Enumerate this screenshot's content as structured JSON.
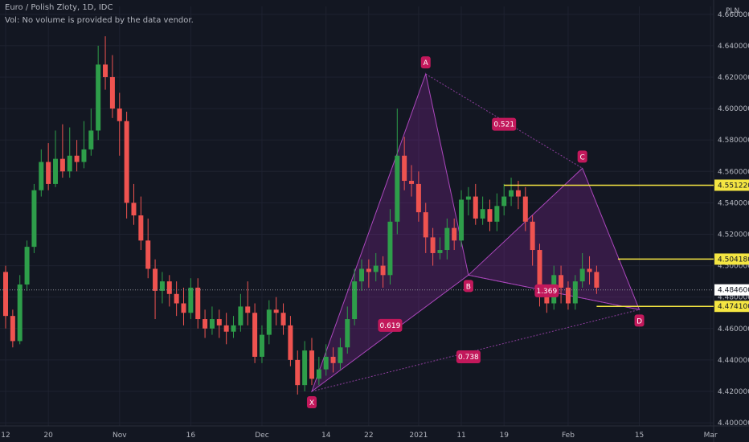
{
  "header": {
    "title": "Euro / Polish Zloty, 1D, IDC",
    "volume_note": "Vol: No volume is provided by the data vendor."
  },
  "colors": {
    "background": "#131722",
    "grid": "#1e2230",
    "axis_text": "#b2b5be",
    "up": "#26a69a",
    "up_green": "#2e9e4a",
    "down": "#ef5350",
    "pattern_fill": "#9c27b0",
    "pattern_line": "#ab47bc",
    "label_bg": "#c2185b",
    "level_line": "#f5e642"
  },
  "chart_data": {
    "type": "candlestick",
    "y_unit": "PLN",
    "ylim": [
      4.398,
      4.665
    ],
    "yticks": [
      "4.400000",
      "4.420000",
      "4.440000",
      "4.460000",
      "4.480000",
      "4.500000",
      "4.520000",
      "4.540000",
      "4.560000",
      "4.580000",
      "4.600000",
      "4.620000",
      "4.640000",
      "4.660000"
    ],
    "x_labels": [
      {
        "label": "12",
        "index": 0
      },
      {
        "label": "20",
        "index": 6
      },
      {
        "label": "Nov",
        "index": 16
      },
      {
        "label": "16",
        "index": 26
      },
      {
        "label": "Dec",
        "index": 36
      },
      {
        "label": "14",
        "index": 45
      },
      {
        "label": "22",
        "index": 51
      },
      {
        "label": "2021",
        "index": 58
      },
      {
        "label": "11",
        "index": 64
      },
      {
        "label": "19",
        "index": 70
      },
      {
        "label": "Feb",
        "index": 79
      },
      {
        "label": "15",
        "index": 89
      },
      {
        "label": "Mar",
        "index": 99
      }
    ],
    "candles": [
      [
        4.496,
        4.468,
        4.5,
        4.46
      ],
      [
        4.468,
        4.452,
        4.472,
        4.448
      ],
      [
        4.452,
        4.488,
        4.494,
        4.45
      ],
      [
        4.488,
        4.512,
        4.516,
        4.484
      ],
      [
        4.512,
        4.548,
        4.552,
        4.508
      ],
      [
        4.548,
        4.566,
        4.574,
        4.544
      ],
      [
        4.566,
        4.552,
        4.578,
        4.548
      ],
      [
        4.552,
        4.568,
        4.586,
        4.55
      ],
      [
        4.568,
        4.56,
        4.59,
        4.556
      ],
      [
        4.56,
        4.57,
        4.588,
        4.556
      ],
      [
        4.57,
        4.566,
        4.58,
        4.56
      ],
      [
        4.566,
        4.574,
        4.592,
        4.562
      ],
      [
        4.574,
        4.586,
        4.6,
        4.57
      ],
      [
        4.586,
        4.628,
        4.64,
        4.58
      ],
      [
        4.628,
        4.62,
        4.646,
        4.612
      ],
      [
        4.62,
        4.6,
        4.634,
        4.594
      ],
      [
        4.6,
        4.592,
        4.61,
        4.57
      ],
      [
        4.592,
        4.54,
        4.598,
        4.53
      ],
      [
        4.54,
        4.532,
        4.552,
        4.526
      ],
      [
        4.532,
        4.516,
        4.544,
        4.51
      ],
      [
        4.516,
        4.498,
        4.53,
        4.492
      ],
      [
        4.498,
        4.484,
        4.504,
        4.466
      ],
      [
        4.484,
        4.49,
        4.496,
        4.476
      ],
      [
        4.49,
        4.482,
        4.494,
        4.474
      ],
      [
        4.482,
        4.476,
        4.49,
        4.468
      ],
      [
        4.476,
        4.47,
        4.486,
        4.462
      ],
      [
        4.47,
        4.486,
        4.492,
        4.466
      ],
      [
        4.486,
        4.466,
        4.492,
        4.46
      ],
      [
        4.466,
        4.46,
        4.472,
        4.454
      ],
      [
        4.46,
        4.466,
        4.474,
        4.456
      ],
      [
        4.466,
        4.462,
        4.472,
        4.454
      ],
      [
        4.462,
        4.458,
        4.47,
        4.45
      ],
      [
        4.458,
        4.462,
        4.468,
        4.454
      ],
      [
        4.462,
        4.474,
        4.482,
        4.458
      ],
      [
        4.474,
        4.47,
        4.49,
        4.462
      ],
      [
        4.47,
        4.442,
        4.476,
        4.438
      ],
      [
        4.442,
        4.456,
        4.462,
        4.438
      ],
      [
        4.456,
        4.472,
        4.478,
        4.45
      ],
      [
        4.472,
        4.47,
        4.48,
        4.462
      ],
      [
        4.47,
        4.462,
        4.476,
        4.456
      ],
      [
        4.462,
        4.44,
        4.468,
        4.436
      ],
      [
        4.44,
        4.424,
        4.446,
        4.418
      ],
      [
        4.424,
        4.446,
        4.452,
        4.42
      ],
      [
        4.446,
        4.428,
        4.454,
        4.424
      ],
      [
        4.428,
        4.434,
        4.442,
        4.424
      ],
      [
        4.434,
        4.442,
        4.45,
        4.43
      ],
      [
        4.442,
        4.438,
        4.448,
        4.432
      ],
      [
        4.438,
        4.448,
        4.454,
        4.434
      ],
      [
        4.448,
        4.466,
        4.474,
        4.444
      ],
      [
        4.466,
        4.49,
        4.498,
        4.462
      ],
      [
        4.49,
        4.498,
        4.504,
        4.484
      ],
      [
        4.498,
        4.496,
        4.504,
        4.486
      ],
      [
        4.496,
        4.5,
        4.508,
        4.49
      ],
      [
        4.5,
        4.494,
        4.506,
        4.486
      ],
      [
        4.494,
        4.528,
        4.536,
        4.488
      ],
      [
        4.528,
        4.57,
        4.6,
        4.52
      ],
      [
        4.57,
        4.554,
        4.582,
        4.548
      ],
      [
        4.554,
        4.552,
        4.564,
        4.544
      ],
      [
        4.552,
        4.534,
        4.56,
        4.528
      ],
      [
        4.534,
        4.518,
        4.54,
        4.508
      ],
      [
        4.518,
        4.508,
        4.524,
        4.5
      ],
      [
        4.508,
        4.51,
        4.518,
        4.504
      ],
      [
        4.51,
        4.524,
        4.53,
        4.504
      ],
      [
        4.524,
        4.516,
        4.53,
        4.51
      ],
      [
        4.516,
        4.542,
        4.548,
        4.512
      ],
      [
        4.542,
        4.544,
        4.55,
        4.532
      ],
      [
        4.544,
        4.53,
        4.552,
        4.526
      ],
      [
        4.53,
        4.536,
        4.544,
        4.526
      ],
      [
        4.536,
        4.528,
        4.542,
        4.522
      ],
      [
        4.528,
        4.538,
        4.546,
        4.522
      ],
      [
        4.538,
        4.544,
        4.552,
        4.532
      ],
      [
        4.544,
        4.548,
        4.556,
        4.538
      ],
      [
        4.548,
        4.544,
        4.554,
        4.536
      ],
      [
        4.544,
        4.528,
        4.55,
        4.522
      ],
      [
        4.528,
        4.51,
        4.532,
        4.5
      ],
      [
        4.51,
        4.48,
        4.514,
        4.474
      ],
      [
        4.48,
        4.476,
        4.488,
        4.47
      ],
      [
        4.476,
        4.494,
        4.5,
        4.472
      ],
      [
        4.494,
        4.486,
        4.5,
        4.476
      ],
      [
        4.486,
        4.476,
        4.49,
        4.472
      ],
      [
        4.476,
        4.49,
        4.494,
        4.472
      ],
      [
        4.49,
        4.498,
        4.508,
        4.486
      ],
      [
        4.498,
        4.496,
        4.506,
        4.488
      ],
      [
        4.496,
        4.486,
        4.5,
        4.482
      ]
    ],
    "harmonic_pattern": {
      "points": [
        {
          "label": "X",
          "index": 43,
          "price": 4.42
        },
        {
          "label": "A",
          "index": 59,
          "price": 4.622
        },
        {
          "label": "B",
          "index": 65,
          "price": 4.494
        },
        {
          "label": "C",
          "index": 81,
          "price": 4.562
        },
        {
          "label": "D",
          "index": 89,
          "price": 4.472
        }
      ],
      "ratios": [
        {
          "label": "0.619",
          "between": "XB",
          "index": 54,
          "price": 4.462
        },
        {
          "label": "0.521",
          "between": "AC",
          "index": 70,
          "price": 4.59
        },
        {
          "label": "1.369",
          "between": "BD",
          "index": 76,
          "price": 4.484
        },
        {
          "label": "0.738",
          "between": "XD",
          "index": 65,
          "price": 4.442
        }
      ]
    },
    "levels": [
      {
        "price": 4.55122,
        "label": "4.551220",
        "from_index": 70
      },
      {
        "price": 4.50418,
        "label": "4.504180",
        "from_index": 86
      },
      {
        "price": 4.4741,
        "label": "4.474100",
        "from_index": 83
      }
    ],
    "last_price": {
      "price": 4.4846,
      "label": "4.484600"
    },
    "grid": true
  }
}
